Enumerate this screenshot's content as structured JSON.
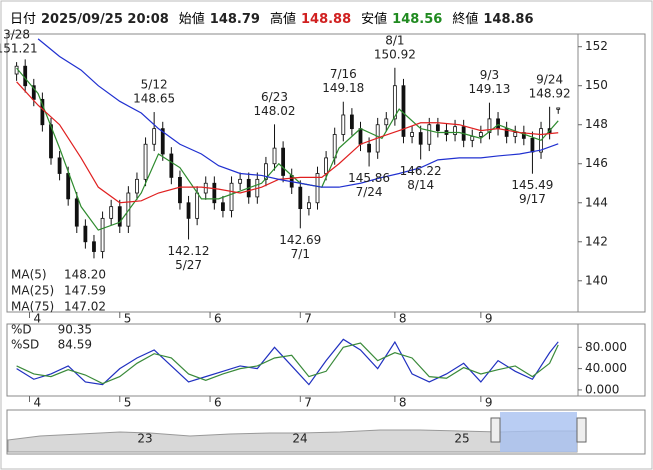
{
  "header": {
    "items": [
      {
        "label": "日付",
        "value": "2025/09/25 20:08",
        "color": "#222"
      },
      {
        "label": "始値",
        "value": 148.79,
        "color": "#222"
      },
      {
        "label": "高値",
        "value": 148.88,
        "color": "#d02020"
      },
      {
        "label": "安値",
        "value": 148.56,
        "color": "#208a20"
      },
      {
        "label": "終値",
        "value": 148.86,
        "color": "#222"
      }
    ]
  },
  "chart_data": [
    {
      "type": "candlestick",
      "x": [
        0,
        2,
        4,
        6,
        8,
        10,
        12,
        14,
        16,
        18,
        20,
        22,
        24,
        26,
        28,
        30,
        32,
        34,
        36,
        38,
        40,
        42,
        44,
        46,
        48,
        50,
        52,
        54,
        56,
        58,
        60,
        62,
        64,
        66,
        68,
        70,
        72,
        74,
        76,
        78,
        80,
        82,
        84,
        86,
        88,
        90,
        92,
        94,
        96,
        98,
        100,
        102,
        104,
        106,
        108,
        110,
        112,
        114,
        116,
        118,
        120,
        122,
        124,
        126
      ],
      "open": [
        150.6,
        151.0,
        150.0,
        149.3,
        148.0,
        146.3,
        145.5,
        144.2,
        142.8,
        142.0,
        141.5,
        143.2,
        143.8,
        142.8,
        144.5,
        145.2,
        147.0,
        147.8,
        146.5,
        145.3,
        144.0,
        143.2,
        144.5,
        145.0,
        144.0,
        143.6,
        145.0,
        145.2,
        144.3,
        145.2,
        146.0,
        146.8,
        145.4,
        144.8,
        143.7,
        144.0,
        145.5,
        146.3,
        147.5,
        148.5,
        147.8,
        147.0,
        146.6,
        148.0,
        148.3,
        150.0,
        147.4,
        147.6,
        147.0,
        148.0,
        147.7,
        147.5,
        147.9,
        147.2,
        147.4,
        147.6,
        148.3,
        147.8,
        147.4,
        147.6,
        147.3,
        146.6,
        147.8,
        148.79
      ],
      "high": [
        151.21,
        151.35,
        150.35,
        149.65,
        148.35,
        146.65,
        145.85,
        144.55,
        143.15,
        142.35,
        143.55,
        144.15,
        144.15,
        144.85,
        145.55,
        147.35,
        148.65,
        148.15,
        146.85,
        145.65,
        144.35,
        144.85,
        145.35,
        145.35,
        144.35,
        145.35,
        145.55,
        145.55,
        145.55,
        146.35,
        148.02,
        147.15,
        145.75,
        145.15,
        144.35,
        145.85,
        146.65,
        147.85,
        149.18,
        148.85,
        148.15,
        147.35,
        148.35,
        148.65,
        150.92,
        150.35,
        147.95,
        147.95,
        148.35,
        148.35,
        148.05,
        148.25,
        148.25,
        147.75,
        147.95,
        149.13,
        148.65,
        148.15,
        147.95,
        147.95,
        147.65,
        148.15,
        148.92,
        148.88
      ],
      "low": [
        150.25,
        149.65,
        148.95,
        147.65,
        145.95,
        145.15,
        143.85,
        142.45,
        141.65,
        141.15,
        141.15,
        142.85,
        142.45,
        142.45,
        144.15,
        144.85,
        146.65,
        146.15,
        144.95,
        143.65,
        142.12,
        142.85,
        144.15,
        143.65,
        143.25,
        143.25,
        144.65,
        143.95,
        143.95,
        144.85,
        145.65,
        145.05,
        144.45,
        142.69,
        143.35,
        143.65,
        145.15,
        145.95,
        147.15,
        147.45,
        146.65,
        145.86,
        146.25,
        147.65,
        147.95,
        147.05,
        147.05,
        146.22,
        146.65,
        147.35,
        147.15,
        147.15,
        146.85,
        146.85,
        147.05,
        147.25,
        147.45,
        147.05,
        147.05,
        146.95,
        145.49,
        146.25,
        147.25,
        148.56
      ],
      "close": [
        151.0,
        150.0,
        149.3,
        148.0,
        146.3,
        145.5,
        144.2,
        142.8,
        142.0,
        141.5,
        143.2,
        143.8,
        142.8,
        144.5,
        145.2,
        147.0,
        147.8,
        146.5,
        145.3,
        144.0,
        143.2,
        144.5,
        145.0,
        144.0,
        143.6,
        145.0,
        145.2,
        144.3,
        145.2,
        146.0,
        146.8,
        145.4,
        144.8,
        143.7,
        144.0,
        145.5,
        146.3,
        147.5,
        148.5,
        147.8,
        147.0,
        146.6,
        148.0,
        148.3,
        150.0,
        147.4,
        147.6,
        147.0,
        148.0,
        147.7,
        147.5,
        147.9,
        147.2,
        147.4,
        147.6,
        148.3,
        147.8,
        147.4,
        147.6,
        147.3,
        146.6,
        147.8,
        147.6,
        148.86
      ],
      "up_color": "#ffffff",
      "down_color": "#111111",
      "series": [
        {
          "name": "MA(5)",
          "color": "#2e8b2e",
          "legend_value": "148.20",
          "x": [
            0,
            5,
            10,
            15,
            19,
            24,
            29,
            33,
            38,
            43,
            47,
            52,
            57,
            61,
            66,
            71,
            75,
            80,
            85,
            89,
            94,
            98,
            103,
            108,
            112,
            117,
            122,
            126
          ],
          "values": [
            150.9,
            149.6,
            146.8,
            143.8,
            142.6,
            143,
            144.5,
            146.5,
            145.8,
            144.2,
            144.2,
            144.6,
            145,
            146,
            145,
            144.8,
            146.8,
            147.8,
            147.3,
            148.8,
            147.8,
            147.6,
            147.6,
            147.3,
            148,
            147.6,
            147.2,
            148.2
          ]
        },
        {
          "name": "MA(25)",
          "color": "#e02020",
          "legend_value": "147.59",
          "x": [
            0,
            5,
            10,
            15,
            19,
            24,
            29,
            33,
            38,
            43,
            47,
            52,
            57,
            61,
            66,
            71,
            75,
            80,
            85,
            89,
            94,
            98,
            103,
            108,
            112,
            117,
            122,
            126
          ],
          "values": [
            150.2,
            149.0,
            148.0,
            146.3,
            144.8,
            144.0,
            144.1,
            144.5,
            144.8,
            144.8,
            144.7,
            144.5,
            144.8,
            145.2,
            145.3,
            145.3,
            146.0,
            147.0,
            147.4,
            147.7,
            148.1,
            148.1,
            148.0,
            147.7,
            147.8,
            147.6,
            147.5,
            147.59
          ]
        },
        {
          "name": "MA(75)",
          "color": "#2030d0",
          "legend_value": "147.02",
          "x": [
            5,
            10,
            15,
            19,
            24,
            29,
            33,
            38,
            43,
            47,
            52,
            57,
            61,
            66,
            71,
            75,
            80,
            85,
            89,
            94,
            98,
            103,
            108,
            112,
            117,
            122,
            126
          ],
          "values": [
            152.4,
            151.5,
            150.8,
            150.0,
            149.2,
            148.6,
            147.8,
            147.0,
            146.5,
            145.9,
            145.5,
            145.4,
            145.2,
            145.0,
            144.8,
            144.8,
            145.0,
            145.3,
            145.5,
            145.8,
            146.2,
            146.3,
            146.3,
            146.4,
            146.5,
            146.7,
            147.02
          ]
        }
      ],
      "annotations": [
        {
          "text": "3/28",
          "value": 151.21,
          "x": 0,
          "position": "above"
        },
        {
          "text": "5/12",
          "value": 148.65,
          "x": 32,
          "position": "above"
        },
        {
          "text": "6/23",
          "value": 148.02,
          "x": 60,
          "position": "above"
        },
        {
          "text": "7/16",
          "value": 149.18,
          "x": 76,
          "position": "above"
        },
        {
          "text": "8/1",
          "value": 150.92,
          "x": 88,
          "position": "above"
        },
        {
          "text": "9/3",
          "value": 149.13,
          "x": 110,
          "position": "above"
        },
        {
          "text": "9/24",
          "value": 148.92,
          "x": 124,
          "position": "above"
        },
        {
          "text": "5/27",
          "value": 142.12,
          "x": 40,
          "position": "below"
        },
        {
          "text": "7/1",
          "value": 142.69,
          "x": 66,
          "position": "below"
        },
        {
          "text": "7/24",
          "value": 145.86,
          "x": 82,
          "position": "below"
        },
        {
          "text": "8/14",
          "value": 146.22,
          "x": 94,
          "position": "below"
        },
        {
          "text": "9/17",
          "value": 145.49,
          "x": 120,
          "position": "below"
        }
      ],
      "xlim": [
        -2,
        130.6
      ],
      "xticks": [
        {
          "value": 3,
          "label": "4"
        },
        {
          "value": 24,
          "label": "5"
        },
        {
          "value": 45,
          "label": "6"
        },
        {
          "value": 66,
          "label": "7"
        },
        {
          "value": 88,
          "label": "8"
        },
        {
          "value": 108,
          "label": "9"
        }
      ],
      "ylim": [
        138.4,
        152.6
      ],
      "yticks": [
        140,
        142,
        144,
        146,
        148,
        150,
        152
      ]
    },
    {
      "type": "line",
      "x": [
        0,
        4,
        8,
        12,
        16,
        20,
        24,
        28,
        32,
        36,
        40,
        44,
        48,
        52,
        56,
        60,
        64,
        68,
        72,
        76,
        80,
        84,
        88,
        92,
        96,
        100,
        104,
        108,
        112,
        116,
        120,
        124,
        126
      ],
      "series": [
        {
          "name": "%D",
          "color": "#2030c0",
          "values": [
            40,
            20,
            30,
            45,
            15,
            10,
            40,
            60,
            75,
            45,
            15,
            25,
            35,
            45,
            40,
            80,
            45,
            10,
            55,
            95,
            75,
            40,
            90,
            30,
            15,
            30,
            50,
            15,
            55,
            35,
            20,
            70,
            90.35
          ]
        },
        {
          "name": "%SD",
          "color": "#3a8a3a",
          "values": [
            45,
            30,
            25,
            38,
            28,
            12,
            25,
            50,
            68,
            60,
            30,
            18,
            30,
            40,
            45,
            60,
            65,
            25,
            35,
            80,
            88,
            55,
            70,
            60,
            25,
            22,
            42,
            30,
            38,
            45,
            25,
            50,
            84.59
          ]
        }
      ],
      "xlim": [
        -2,
        130.6
      ],
      "xticks": [
        {
          "value": 3,
          "label": "4"
        },
        {
          "value": 24,
          "label": "5"
        },
        {
          "value": 45,
          "label": "6"
        },
        {
          "value": 66,
          "label": "7"
        },
        {
          "value": 88,
          "label": "8"
        },
        {
          "value": 108,
          "label": "9"
        }
      ],
      "ylim": [
        -11.4,
        123.8
      ],
      "yticks": [
        {
          "value": 0,
          "label": "0.000"
        },
        {
          "value": 40,
          "label": "40.000"
        },
        {
          "value": 80,
          "label": "80.000"
        }
      ]
    }
  ],
  "navigator": {
    "labels": [
      "23",
      "24",
      "25"
    ]
  }
}
